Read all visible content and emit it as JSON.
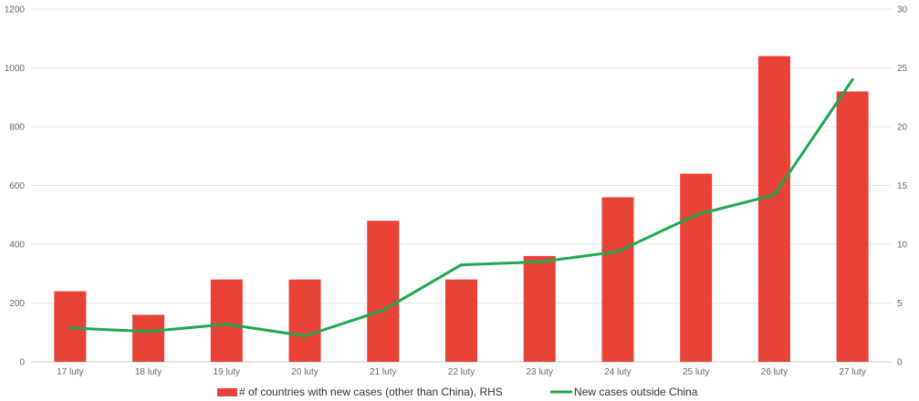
{
  "chart_data": {
    "type": "bar",
    "categories": [
      "17 luty",
      "18 luty",
      "19 luty",
      "20 luty",
      "21 luty",
      "22 luty",
      "23 luty",
      "24 luty",
      "25 luty",
      "26 luty",
      "27 luty"
    ],
    "left_axis": {
      "min": 0,
      "max": 1200,
      "ticks": [
        0,
        200,
        400,
        600,
        800,
        1000,
        1200
      ]
    },
    "right_axis": {
      "min": 0,
      "max": 30,
      "ticks": [
        0,
        5,
        10,
        15,
        20,
        25,
        30
      ]
    },
    "series": [
      {
        "name": "# of countries with new cases (other than China), RHS",
        "type": "bar",
        "axis": "right",
        "color": "#e84135",
        "values": [
          6,
          4,
          7,
          7,
          12,
          7,
          9,
          14,
          16,
          26,
          23
        ]
      },
      {
        "name": "New cases outside China",
        "type": "line",
        "axis": "left",
        "color": "#1fa84f",
        "values": [
          115,
          103,
          128,
          88,
          175,
          330,
          340,
          375,
          500,
          568,
          960
        ]
      }
    ],
    "grid": true,
    "legend_position": "bottom"
  }
}
